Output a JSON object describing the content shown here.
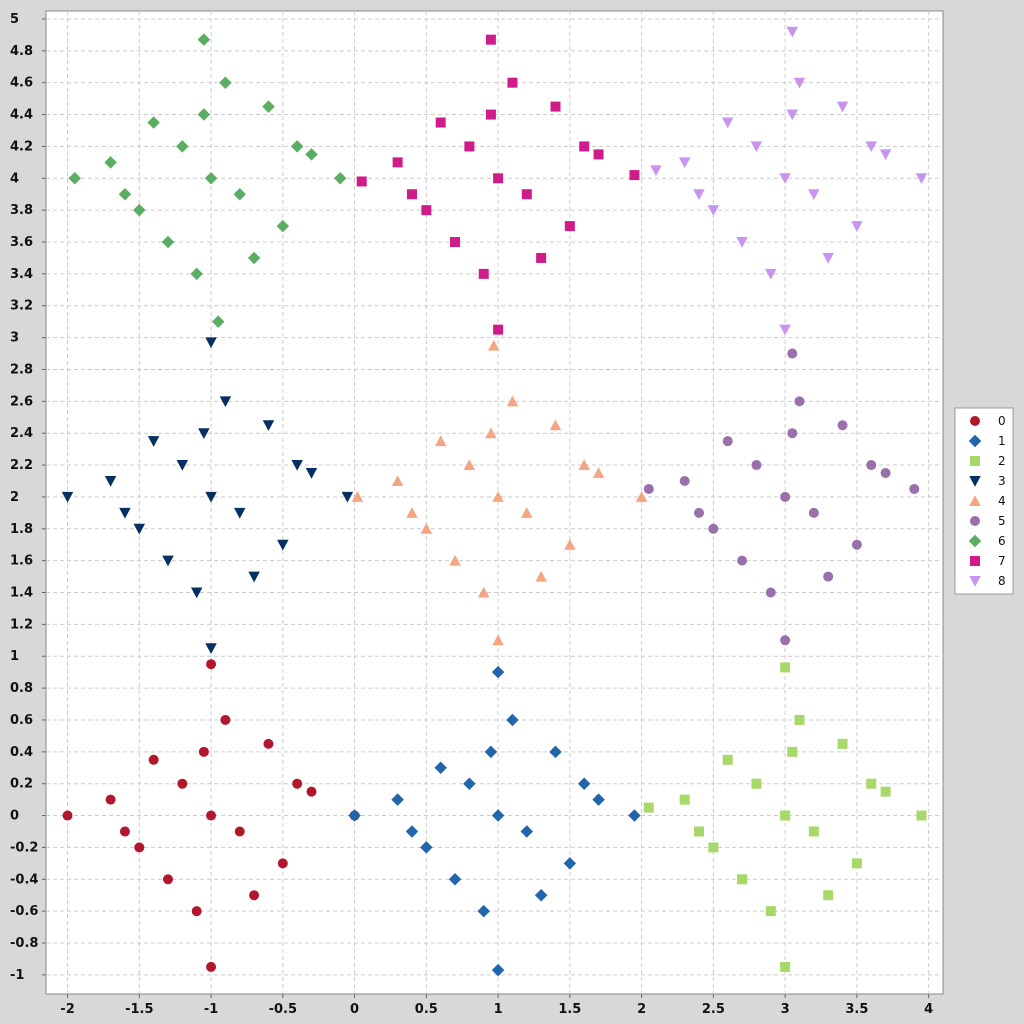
{
  "chart_data": {
    "type": "scatter",
    "title": "",
    "xlabel": "",
    "ylabel": "",
    "xlim": [
      -2.15,
      4.1
    ],
    "ylim": [
      -1.12,
      5.05
    ],
    "x_ticks": [
      "-2",
      "-1.5",
      "-1",
      "-0.5",
      "0",
      "0.5",
      "1",
      "1.5",
      "2",
      "2.5",
      "3",
      "3.5",
      "4"
    ],
    "y_ticks": [
      "-1",
      "-0.8",
      "-0.6",
      "-0.4",
      "-0.2",
      "0",
      "0.2",
      "0.4",
      "0.6",
      "0.8",
      "1",
      "1.2",
      "1.4",
      "1.6",
      "1.8",
      "2",
      "2.2",
      "2.4",
      "2.6",
      "2.8",
      "3",
      "3.2",
      "3.4",
      "3.6",
      "3.8",
      "4",
      "4.2",
      "4.4",
      "4.6",
      "4.8",
      "5"
    ],
    "grid": true,
    "legend_position": "right",
    "series": [
      {
        "name": "0",
        "color": "#b2182b",
        "marker": "circle",
        "points": [
          [
            -2,
            0
          ],
          [
            -1,
            0.95
          ],
          [
            0,
            0
          ],
          [
            -1,
            -0.95
          ],
          [
            -1,
            0
          ],
          [
            -1.4,
            0.35
          ],
          [
            -0.6,
            0.45
          ],
          [
            -1.5,
            -0.2
          ],
          [
            -0.5,
            -0.3
          ],
          [
            -1.1,
            -0.6
          ],
          [
            -0.9,
            0.6
          ],
          [
            -1.7,
            0.1
          ],
          [
            -0.3,
            0.15
          ],
          [
            -1.2,
            0.2
          ],
          [
            -0.8,
            -0.1
          ],
          [
            -1.3,
            -0.4
          ],
          [
            -0.7,
            -0.5
          ],
          [
            -1.6,
            -0.1
          ],
          [
            -0.4,
            0.2
          ],
          [
            -1.05,
            0.4
          ]
        ]
      },
      {
        "name": "1",
        "color": "#2166ac",
        "marker": "diamond",
        "points": [
          [
            0,
            0
          ],
          [
            1,
            0.9
          ],
          [
            1.95,
            0
          ],
          [
            1,
            -0.97
          ],
          [
            1,
            0
          ],
          [
            0.6,
            0.3
          ],
          [
            1.4,
            0.4
          ],
          [
            0.5,
            -0.2
          ],
          [
            1.5,
            -0.3
          ],
          [
            0.9,
            -0.6
          ],
          [
            1.1,
            0.6
          ],
          [
            0.3,
            0.1
          ],
          [
            1.7,
            0.1
          ],
          [
            0.8,
            0.2
          ],
          [
            1.2,
            -0.1
          ],
          [
            0.7,
            -0.4
          ],
          [
            1.3,
            -0.5
          ],
          [
            0.4,
            -0.1
          ],
          [
            1.6,
            0.2
          ],
          [
            0.95,
            0.4
          ]
        ]
      },
      {
        "name": "2",
        "color": "#a6d96a",
        "marker": "square",
        "points": [
          [
            2.05,
            0.05
          ],
          [
            3,
            0.93
          ],
          [
            3.95,
            0
          ],
          [
            3,
            -0.95
          ],
          [
            3,
            0
          ],
          [
            2.6,
            0.35
          ],
          [
            3.4,
            0.45
          ],
          [
            2.5,
            -0.2
          ],
          [
            3.5,
            -0.3
          ],
          [
            2.9,
            -0.6
          ],
          [
            3.1,
            0.6
          ],
          [
            2.3,
            0.1
          ],
          [
            3.7,
            0.15
          ],
          [
            2.8,
            0.2
          ],
          [
            3.2,
            -0.1
          ],
          [
            2.7,
            -0.4
          ],
          [
            3.3,
            -0.5
          ],
          [
            2.4,
            -0.1
          ],
          [
            3.6,
            0.2
          ],
          [
            3.05,
            0.4
          ]
        ]
      },
      {
        "name": "3",
        "color": "#053061",
        "marker": "triangle-down",
        "points": [
          [
            -2,
            2
          ],
          [
            -1,
            2.97
          ],
          [
            -0.05,
            2
          ],
          [
            -1,
            1.05
          ],
          [
            -1,
            2
          ],
          [
            -1.4,
            2.35
          ],
          [
            -0.6,
            2.45
          ],
          [
            -1.5,
            1.8
          ],
          [
            -0.5,
            1.7
          ],
          [
            -1.1,
            1.4
          ],
          [
            -0.9,
            2.6
          ],
          [
            -1.7,
            2.1
          ],
          [
            -0.3,
            2.15
          ],
          [
            -1.2,
            2.2
          ],
          [
            -0.8,
            1.9
          ],
          [
            -1.3,
            1.6
          ],
          [
            -0.7,
            1.5
          ],
          [
            -1.6,
            1.9
          ],
          [
            -0.4,
            2.2
          ],
          [
            -1.05,
            2.4
          ]
        ]
      },
      {
        "name": "4",
        "color": "#f4a582",
        "marker": "triangle-up",
        "points": [
          [
            0.02,
            2
          ],
          [
            0.97,
            2.95
          ],
          [
            2,
            2
          ],
          [
            1,
            1.1
          ],
          [
            1,
            2
          ],
          [
            0.6,
            2.35
          ],
          [
            1.4,
            2.45
          ],
          [
            0.5,
            1.8
          ],
          [
            1.5,
            1.7
          ],
          [
            0.9,
            1.4
          ],
          [
            1.1,
            2.6
          ],
          [
            0.3,
            2.1
          ],
          [
            1.7,
            2.15
          ],
          [
            0.8,
            2.2
          ],
          [
            1.2,
            1.9
          ],
          [
            0.7,
            1.6
          ],
          [
            1.3,
            1.5
          ],
          [
            0.4,
            1.9
          ],
          [
            1.6,
            2.2
          ],
          [
            0.95,
            2.4
          ]
        ]
      },
      {
        "name": "5",
        "color": "#9970ab",
        "marker": "circle",
        "points": [
          [
            2.05,
            2.05
          ],
          [
            3.05,
            2.9
          ],
          [
            3.9,
            2.05
          ],
          [
            3,
            1.1
          ],
          [
            3,
            2
          ],
          [
            2.6,
            2.35
          ],
          [
            3.4,
            2.45
          ],
          [
            2.5,
            1.8
          ],
          [
            3.5,
            1.7
          ],
          [
            2.9,
            1.4
          ],
          [
            3.1,
            2.6
          ],
          [
            2.3,
            2.1
          ],
          [
            3.7,
            2.15
          ],
          [
            2.8,
            2.2
          ],
          [
            3.2,
            1.9
          ],
          [
            2.7,
            1.6
          ],
          [
            3.3,
            1.5
          ],
          [
            2.4,
            1.9
          ],
          [
            3.6,
            2.2
          ],
          [
            3.05,
            2.4
          ]
        ]
      },
      {
        "name": "6",
        "color": "#5aae61",
        "marker": "diamond",
        "points": [
          [
            -1.95,
            4
          ],
          [
            -1.05,
            4.87
          ],
          [
            -0.1,
            4
          ],
          [
            -0.95,
            3.1
          ],
          [
            -1,
            4
          ],
          [
            -1.4,
            4.35
          ],
          [
            -0.6,
            4.45
          ],
          [
            -1.5,
            3.8
          ],
          [
            -0.5,
            3.7
          ],
          [
            -1.1,
            3.4
          ],
          [
            -0.9,
            4.6
          ],
          [
            -1.7,
            4.1
          ],
          [
            -0.3,
            4.15
          ],
          [
            -1.2,
            4.2
          ],
          [
            -0.8,
            3.9
          ],
          [
            -1.3,
            3.6
          ],
          [
            -0.7,
            3.5
          ],
          [
            -1.6,
            3.9
          ],
          [
            -0.4,
            4.2
          ],
          [
            -1.05,
            4.4
          ]
        ]
      },
      {
        "name": "7",
        "color": "#d01c8b",
        "marker": "square",
        "points": [
          [
            0.05,
            3.98
          ],
          [
            0.95,
            4.87
          ],
          [
            1.95,
            4.02
          ],
          [
            1,
            3.05
          ],
          [
            1,
            4
          ],
          [
            0.6,
            4.35
          ],
          [
            1.4,
            4.45
          ],
          [
            0.5,
            3.8
          ],
          [
            1.5,
            3.7
          ],
          [
            0.9,
            3.4
          ],
          [
            1.1,
            4.6
          ],
          [
            0.3,
            4.1
          ],
          [
            1.7,
            4.15
          ],
          [
            0.8,
            4.2
          ],
          [
            1.2,
            3.9
          ],
          [
            0.7,
            3.6
          ],
          [
            1.3,
            3.5
          ],
          [
            0.4,
            3.9
          ],
          [
            1.6,
            4.2
          ],
          [
            0.95,
            4.4
          ]
        ]
      },
      {
        "name": "8",
        "color": "#c994f0",
        "marker": "triangle-down",
        "points": [
          [
            2.1,
            4.05
          ],
          [
            3.05,
            4.92
          ],
          [
            3.95,
            4.0
          ],
          [
            3,
            3.05
          ],
          [
            3,
            4
          ],
          [
            2.6,
            4.35
          ],
          [
            3.4,
            4.45
          ],
          [
            2.5,
            3.8
          ],
          [
            3.5,
            3.7
          ],
          [
            2.9,
            3.4
          ],
          [
            3.1,
            4.6
          ],
          [
            2.3,
            4.1
          ],
          [
            3.7,
            4.15
          ],
          [
            2.8,
            4.2
          ],
          [
            3.2,
            3.9
          ],
          [
            2.7,
            3.6
          ],
          [
            3.3,
            3.5
          ],
          [
            2.4,
            3.9
          ],
          [
            3.6,
            4.2
          ],
          [
            3.05,
            4.4
          ]
        ]
      }
    ]
  }
}
